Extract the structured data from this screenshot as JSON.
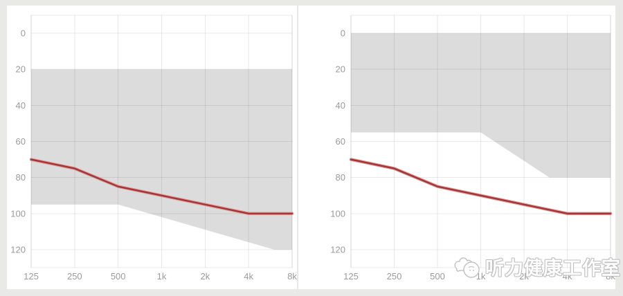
{
  "watermark": {
    "text": "听力健康工作室",
    "logo": "hearing-studio-logo"
  },
  "colors": {
    "page_bg": "#e9e9e8",
    "card_bg": "#ffffff",
    "band": "#dcdcdc",
    "grid": "rgba(0,0,0,0.085)",
    "tick_label": "#9b9b9b",
    "line_core": "#a63434",
    "line_halo": "#d89a9a"
  },
  "chart_data": [
    {
      "id": "left-audiogram",
      "type": "line",
      "x_scale": "log2",
      "grid": true,
      "x_tick_labels": [
        "125",
        "250",
        "500",
        "1k",
        "2k",
        "4k",
        "8k"
      ],
      "x_freqs_hz": [
        125,
        250,
        500,
        1000,
        2000,
        4000,
        8000
      ],
      "y_tick_labels": [
        "0",
        "20",
        "40",
        "60",
        "80",
        "100",
        "120"
      ],
      "y_ticks_db": [
        0,
        20,
        40,
        60,
        80,
        100,
        120
      ],
      "ylim_db": [
        -10,
        130
      ],
      "xlim_hz": [
        125,
        8000
      ],
      "series": [
        {
          "name": "fitting-range-band",
          "type": "area",
          "role": "band",
          "upper_db_points": [
            [
              125,
              20
            ],
            [
              8000,
              20
            ]
          ],
          "lower_db_points": [
            [
              125,
              95
            ],
            [
              500,
              95
            ],
            [
              6000,
              120
            ],
            [
              8000,
              120
            ]
          ]
        },
        {
          "name": "hearing-threshold",
          "type": "line",
          "role": "threshold",
          "points_db": [
            [
              125,
              70
            ],
            [
              250,
              75
            ],
            [
              500,
              85
            ],
            [
              1000,
              90
            ],
            [
              2000,
              95
            ],
            [
              4000,
              100
            ],
            [
              8000,
              100
            ]
          ]
        }
      ]
    },
    {
      "id": "right-audiogram",
      "type": "line",
      "x_scale": "log2",
      "grid": true,
      "x_tick_labels": [
        "125",
        "250",
        "500",
        "1k",
        "2k",
        "4k",
        "8k"
      ],
      "x_freqs_hz": [
        125,
        250,
        500,
        1000,
        2000,
        4000,
        8000
      ],
      "y_tick_labels": [
        "0",
        "20",
        "40",
        "60",
        "80",
        "100",
        "120"
      ],
      "y_ticks_db": [
        0,
        20,
        40,
        60,
        80,
        100,
        120
      ],
      "ylim_db": [
        -10,
        130
      ],
      "xlim_hz": [
        125,
        8000
      ],
      "series": [
        {
          "name": "fitting-range-band",
          "type": "area",
          "role": "band",
          "upper_db_points": [
            [
              125,
              0
            ],
            [
              8000,
              0
            ]
          ],
          "lower_db_points": [
            [
              125,
              55
            ],
            [
              1000,
              55
            ],
            [
              3000,
              80
            ],
            [
              8000,
              80
            ]
          ]
        },
        {
          "name": "hearing-threshold",
          "type": "line",
          "role": "threshold",
          "points_db": [
            [
              125,
              70
            ],
            [
              250,
              75
            ],
            [
              500,
              85
            ],
            [
              1000,
              90
            ],
            [
              2000,
              95
            ],
            [
              4000,
              100
            ],
            [
              8000,
              100
            ]
          ]
        }
      ]
    }
  ]
}
